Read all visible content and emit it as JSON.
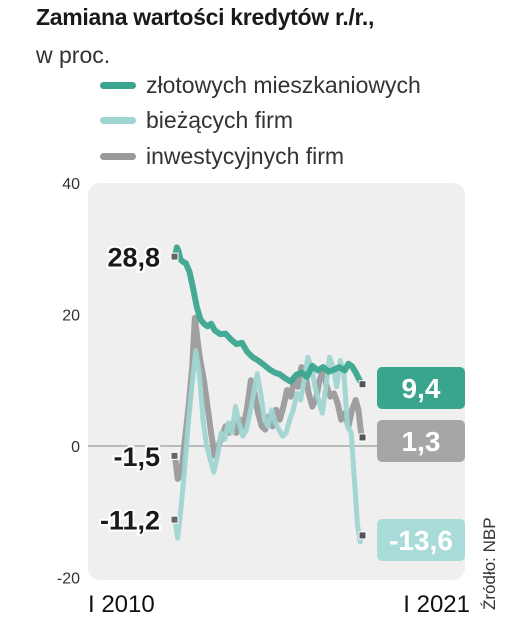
{
  "title": "Zamiana wartości kredytów r./r.,",
  "subtitle": "w proc.",
  "source": "Źródło: NBP",
  "colors": {
    "mieszkaniowe": "#3aa58f",
    "biezace": "#9fd5d1",
    "inwestycyjne": "#9a9a9a",
    "plot_bg": "#efefef",
    "marker": "#777777"
  },
  "chart_data": {
    "type": "line",
    "title": "Zamiana wartości kredytów r./r.,",
    "subtitle": "w proc.",
    "xlabel": "",
    "ylabel": "",
    "xlim": [
      2010.0,
      2021.0
    ],
    "ylim": [
      -20,
      40
    ],
    "yticks": [
      40,
      20,
      0,
      -20
    ],
    "xtick_labels": [
      "I 2010",
      "I 2021"
    ],
    "grid": "zero line only",
    "legend_position": "top",
    "series": [
      {
        "name": "złotowych mieszkaniowych",
        "color": "#3aa58f",
        "x": [
          2010.0,
          2010.1,
          2010.2,
          2010.3,
          2010.45,
          2010.6,
          2010.8,
          2011.0,
          2011.2,
          2011.4,
          2011.6,
          2011.8,
          2012.0,
          2012.2,
          2012.5,
          2012.8,
          2013.1,
          2013.4,
          2013.7,
          2014.0,
          2014.3,
          2014.6,
          2014.9,
          2015.2,
          2015.5,
          2015.8,
          2016.1,
          2016.4,
          2016.7,
          2017.0,
          2017.3,
          2017.6,
          2017.9,
          2018.2,
          2018.5,
          2018.8,
          2019.1,
          2019.4,
          2019.6,
          2019.8,
          2020.0,
          2020.2,
          2020.35
        ],
        "values": [
          28.8,
          30.2,
          29.6,
          28.4,
          28.0,
          27.8,
          26.5,
          24.0,
          21.2,
          19.3,
          18.6,
          18.2,
          18.6,
          17.6,
          17.0,
          17.1,
          16.2,
          15.5,
          15.7,
          14.3,
          13.5,
          13.0,
          12.4,
          11.7,
          11.2,
          10.9,
          10.3,
          9.8,
          10.8,
          11.2,
          10.5,
          12.2,
          11.5,
          12.0,
          11.3,
          11.6,
          12.0,
          11.5,
          12.5,
          12.1,
          11.2,
          10.1,
          9.4
        ]
      },
      {
        "name": "bieżących firm",
        "color": "#9fd5d1",
        "x": [
          2010.0,
          2010.15,
          2010.35,
          2010.55,
          2010.75,
          2010.95,
          2011.15,
          2011.35,
          2011.55,
          2011.75,
          2011.95,
          2012.15,
          2012.35,
          2012.55,
          2012.75,
          2012.95,
          2013.15,
          2013.35,
          2013.55,
          2013.75,
          2013.95,
          2014.15,
          2014.35,
          2014.55,
          2014.75,
          2014.95,
          2015.15,
          2015.35,
          2015.55,
          2015.75,
          2015.95,
          2016.15,
          2016.35,
          2016.55,
          2016.75,
          2016.95,
          2017.15,
          2017.35,
          2017.55,
          2017.75,
          2017.95,
          2018.15,
          2018.35,
          2018.55,
          2018.75,
          2018.95,
          2019.15,
          2019.35,
          2019.55,
          2019.75,
          2019.95,
          2020.1,
          2020.25,
          2020.35
        ],
        "values": [
          -11.2,
          -14.0,
          -9.0,
          -3.0,
          4.0,
          9.5,
          14.5,
          11.0,
          4.0,
          0.0,
          -2.0,
          -4.0,
          -1.5,
          2.0,
          1.0,
          3.5,
          2.0,
          6.0,
          3.5,
          1.5,
          2.5,
          5.0,
          8.0,
          11.0,
          8.0,
          4.0,
          3.0,
          5.5,
          3.5,
          2.5,
          1.5,
          2.0,
          4.0,
          5.5,
          8.0,
          7.0,
          10.0,
          13.5,
          12.0,
          9.0,
          7.0,
          5.0,
          9.0,
          13.5,
          12.0,
          9.0,
          13.0,
          11.0,
          3.0,
          2.0,
          -6.0,
          -12.0,
          -14.6,
          -13.6
        ]
      },
      {
        "name": "inwestycyjnych firm",
        "color": "#9a9a9a",
        "x": [
          2010.0,
          2010.15,
          2010.35,
          2010.55,
          2010.75,
          2010.95,
          2011.1,
          2011.25,
          2011.4,
          2011.6,
          2011.8,
          2012.0,
          2012.2,
          2012.4,
          2012.6,
          2012.8,
          2013.0,
          2013.2,
          2013.4,
          2013.6,
          2013.8,
          2014.0,
          2014.2,
          2014.4,
          2014.6,
          2014.8,
          2015.0,
          2015.2,
          2015.4,
          2015.6,
          2015.8,
          2016.0,
          2016.2,
          2016.4,
          2016.6,
          2016.8,
          2017.0,
          2017.2,
          2017.4,
          2017.6,
          2017.8,
          2018.0,
          2018.2,
          2018.4,
          2018.6,
          2018.8,
          2019.0,
          2019.2,
          2019.4,
          2019.6,
          2019.8,
          2020.0,
          2020.15,
          2020.3,
          2020.35
        ],
        "values": [
          -1.5,
          -5.0,
          -4.0,
          1.0,
          6.0,
          12.0,
          19.5,
          16.0,
          13.0,
          10.0,
          6.0,
          2.0,
          -1.5,
          0.0,
          1.5,
          3.0,
          2.0,
          3.5,
          2.0,
          4.0,
          3.0,
          6.0,
          10.0,
          8.0,
          5.0,
          3.0,
          2.5,
          4.5,
          3.0,
          5.5,
          4.0,
          6.0,
          8.5,
          7.5,
          10.0,
          9.0,
          12.0,
          11.0,
          8.0,
          6.0,
          7.0,
          10.0,
          11.5,
          9.0,
          7.5,
          8.0,
          6.5,
          4.0,
          5.0,
          3.0,
          5.5,
          7.0,
          5.5,
          2.0,
          1.3
        ]
      }
    ],
    "start_labels": [
      {
        "text": "28,8",
        "series": "złotowych mieszkaniowych",
        "value": 28.8
      },
      {
        "text": "-1,5",
        "series": "inwestycyjnych firm",
        "value": -1.5
      },
      {
        "text": "-11,2",
        "series": "bieżących firm",
        "value": -11.2
      }
    ],
    "end_labels": [
      {
        "text": "9,4",
        "series": "złotowych mieszkaniowych",
        "value": 9.4,
        "box_color": "#3aa58f",
        "text_color": "#ffffff"
      },
      {
        "text": "1,3",
        "series": "inwestycyjnych firm",
        "value": 1.3,
        "box_color": "#a6a6a6",
        "text_color": "#ffffff"
      },
      {
        "text": "-13,6",
        "series": "bieżących firm",
        "value": -13.6,
        "box_color": "#a9dcd8",
        "text_color": "#ffffff"
      }
    ]
  }
}
